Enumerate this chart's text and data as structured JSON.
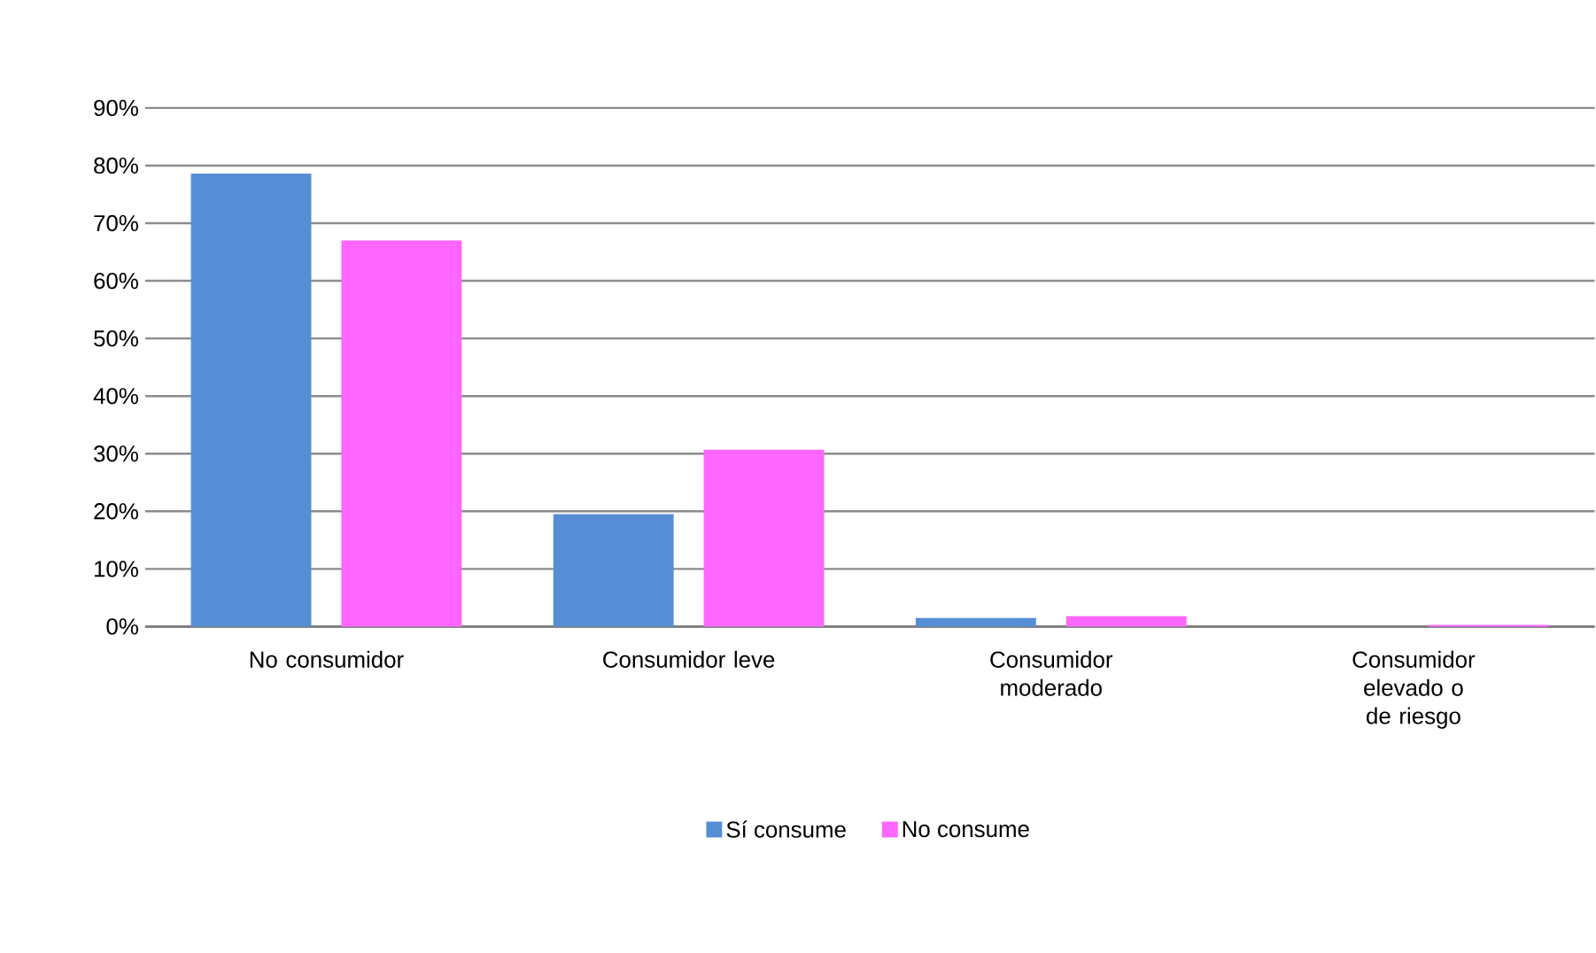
{
  "chart_data": {
    "type": "bar",
    "categories": [
      "No consumidor",
      "Consumidor leve",
      "Consumidor moderado",
      "Consumidor elevado o de riesgo"
    ],
    "series": [
      {
        "name": "Sí consume",
        "color": "#558ed5",
        "values": [
          78.6,
          19.5,
          1.5,
          0
        ]
      },
      {
        "name": "No consume",
        "color": "#ff66ff",
        "values": [
          67.0,
          30.7,
          1.8,
          0.3
        ]
      }
    ],
    "ylim": [
      0,
      90
    ],
    "yticks": [
      {
        "value": 0,
        "label": "0%"
      },
      {
        "value": 10,
        "label": "10%"
      },
      {
        "value": 20,
        "label": "20%"
      },
      {
        "value": 30,
        "label": "30%"
      },
      {
        "value": 40,
        "label": "40%"
      },
      {
        "value": 50,
        "label": "50%"
      },
      {
        "value": 60,
        "label": "60%"
      },
      {
        "value": 70,
        "label": "70%"
      },
      {
        "value": 80,
        "label": "80%"
      },
      {
        "value": 90,
        "label": "90%"
      }
    ],
    "grid": "y",
    "legend": "bottom"
  }
}
